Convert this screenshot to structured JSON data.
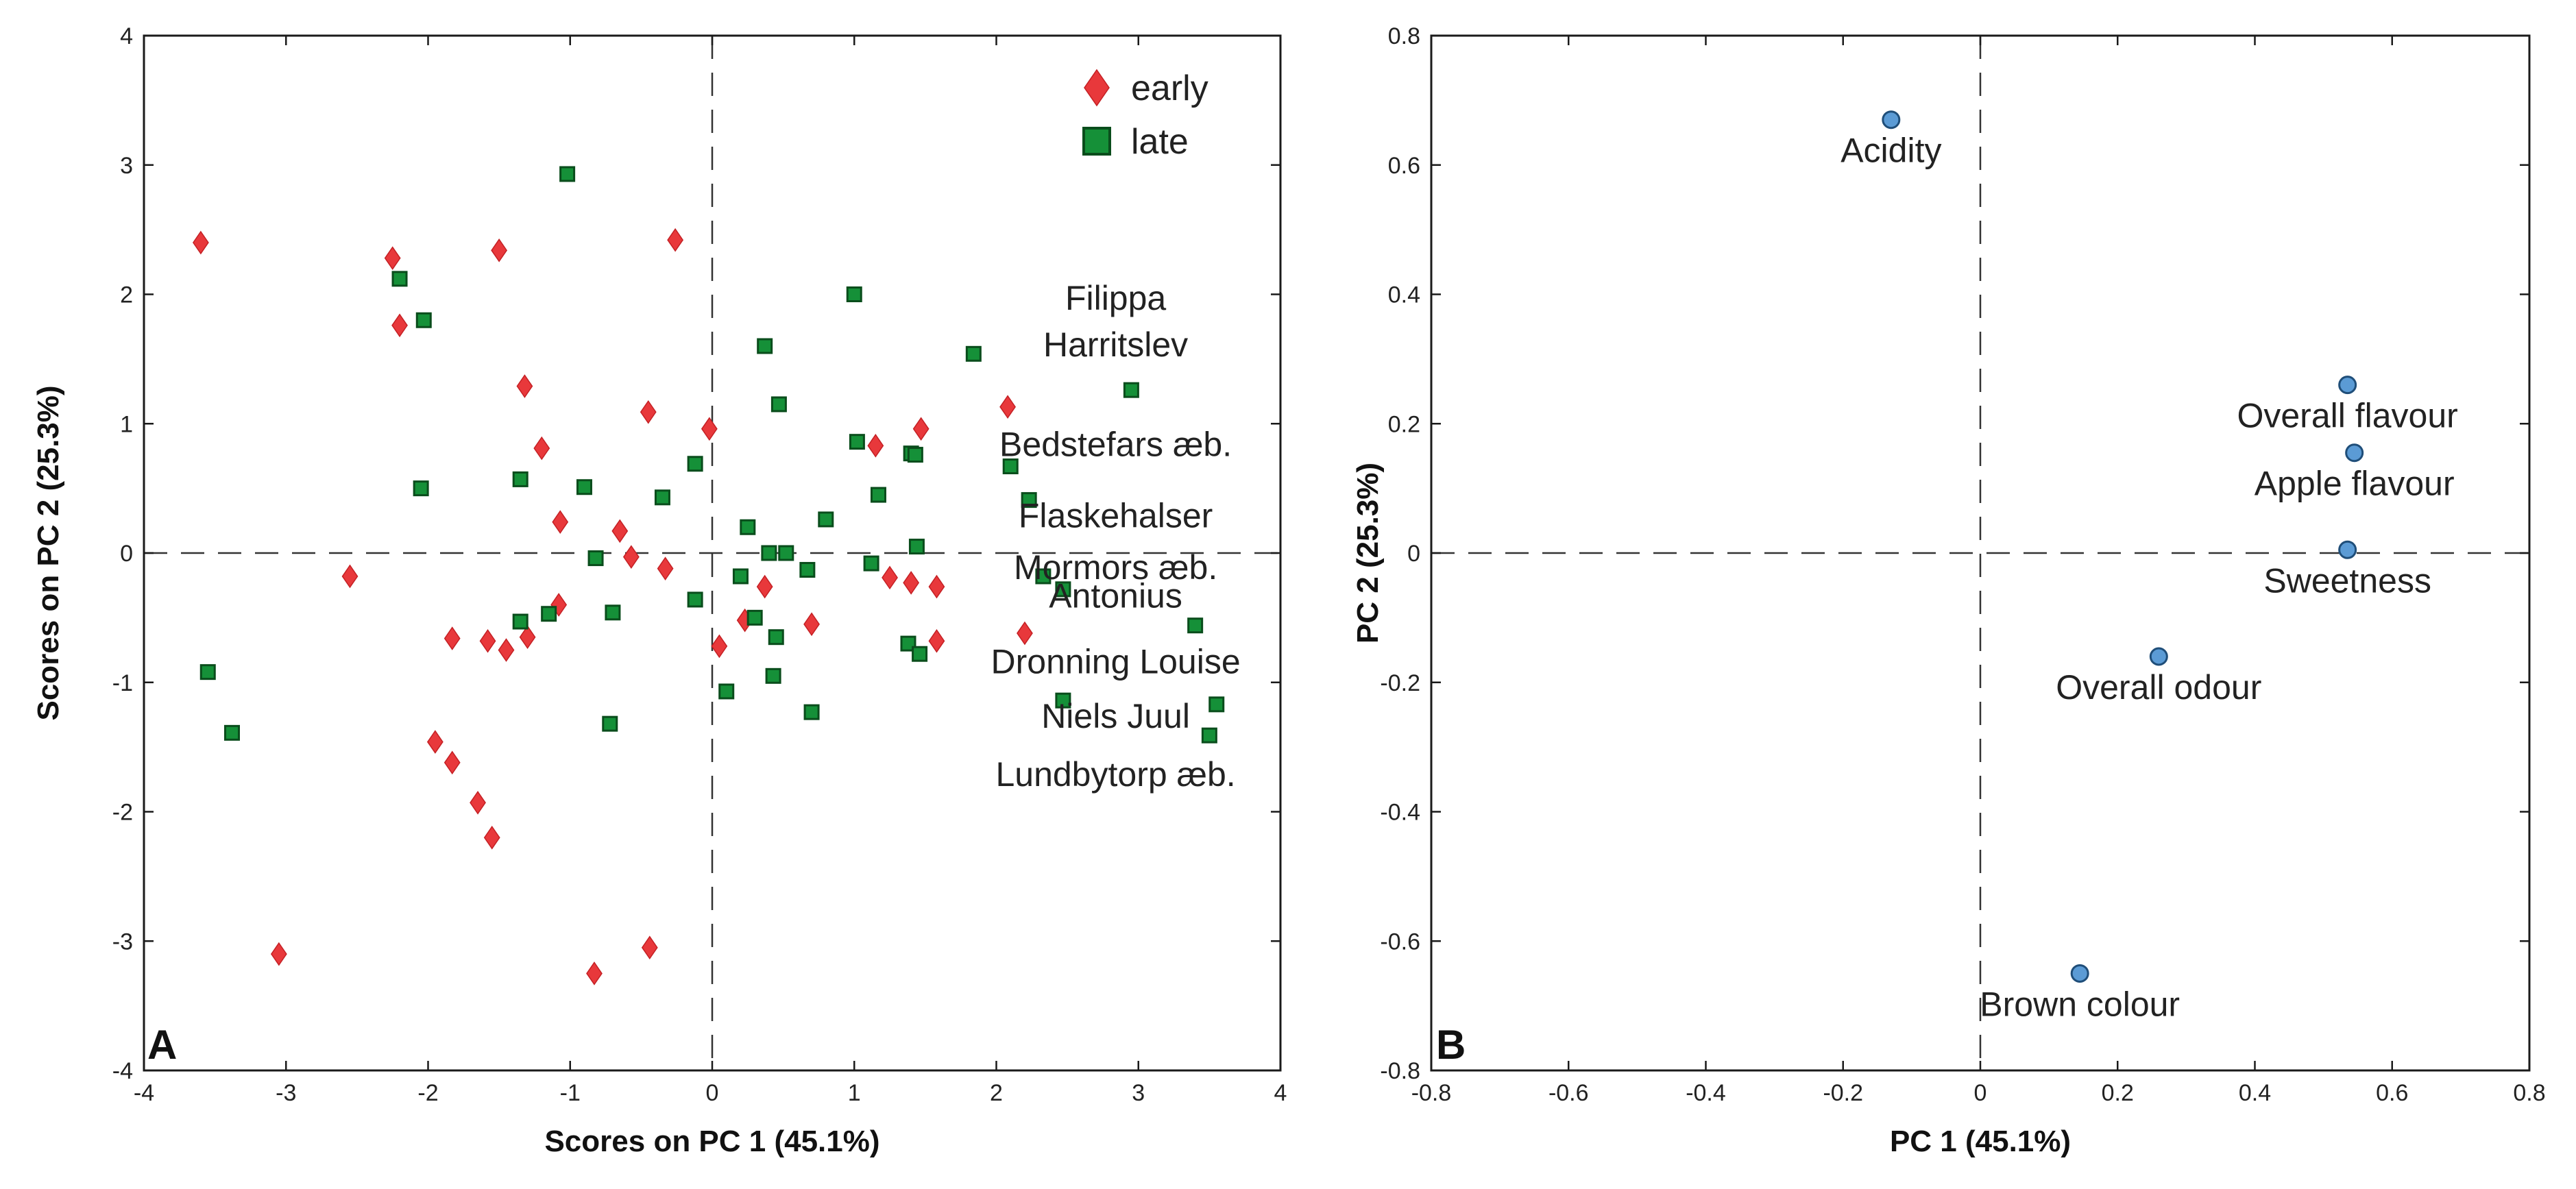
{
  "chart_data": [
    {
      "panel": "A",
      "type": "scatter",
      "xlabel": "Scores on PC 1 (45.1%)",
      "ylabel": "Scores on PC 2 (25.3%)",
      "xlim": [
        -4,
        4
      ],
      "ylim": [
        -4,
        4
      ],
      "xticks": [
        -4,
        -3,
        -2,
        -1,
        0,
        1,
        2,
        3,
        4
      ],
      "yticks": [
        -4,
        -3,
        -2,
        -1,
        0,
        1,
        2,
        3,
        4
      ],
      "reference_lines": "dashed lines at x=0 and y=0",
      "legend": {
        "position": "top-right",
        "entries": [
          "early",
          "late"
        ]
      },
      "series": [
        {
          "name": "early",
          "marker": "diamond",
          "color": "#e8383b",
          "points": [
            [
              -3.6,
              2.4
            ],
            [
              -3.05,
              -3.1
            ],
            [
              -2.55,
              -0.18
            ],
            [
              -2.25,
              2.28
            ],
            [
              -2.2,
              1.76
            ],
            [
              -1.95,
              -1.46
            ],
            [
              -1.83,
              -1.62
            ],
            [
              -1.83,
              -0.66
            ],
            [
              -1.65,
              -1.93
            ],
            [
              -1.58,
              -0.68
            ],
            [
              -1.55,
              -2.2
            ],
            [
              -1.5,
              2.34
            ],
            [
              -1.45,
              -0.75
            ],
            [
              -1.32,
              1.29
            ],
            [
              -1.3,
              -0.65
            ],
            [
              -1.2,
              0.81
            ],
            [
              -1.08,
              -0.4
            ],
            [
              -1.07,
              0.24
            ],
            [
              -0.83,
              -3.25
            ],
            [
              -0.65,
              0.17
            ],
            [
              -0.57,
              -0.03
            ],
            [
              -0.45,
              1.09
            ],
            [
              -0.44,
              -3.05
            ],
            [
              -0.33,
              -0.12
            ],
            [
              -0.26,
              2.42
            ],
            [
              -0.02,
              0.96
            ],
            [
              0.05,
              -0.72
            ],
            [
              0.23,
              -0.52
            ],
            [
              0.37,
              -0.26
            ],
            [
              0.7,
              -0.55
            ],
            [
              1.15,
              0.83
            ],
            [
              1.25,
              -0.19
            ],
            [
              1.4,
              -0.23
            ],
            [
              1.47,
              0.96
            ],
            [
              1.58,
              -0.26
            ],
            [
              1.58,
              -0.68
            ],
            [
              2.08,
              1.13
            ],
            [
              2.2,
              -0.62
            ]
          ]
        },
        {
          "name": "late",
          "marker": "square",
          "color": "#159038",
          "points": [
            [
              -3.55,
              -0.92
            ],
            [
              -3.38,
              -1.39
            ],
            [
              -2.2,
              2.12
            ],
            [
              -2.05,
              0.5
            ],
            [
              -2.03,
              1.8
            ],
            [
              -1.35,
              0.57
            ],
            [
              -1.35,
              -0.53
            ],
            [
              -1.15,
              -0.47
            ],
            [
              -1.02,
              2.93
            ],
            [
              -0.9,
              0.51
            ],
            [
              -0.82,
              -0.04
            ],
            [
              -0.72,
              -1.32
            ],
            [
              -0.7,
              -0.46
            ],
            [
              -0.35,
              0.43
            ],
            [
              -0.12,
              0.69
            ],
            [
              -0.12,
              -0.36
            ],
            [
              0.1,
              -1.07
            ],
            [
              0.2,
              -0.18
            ],
            [
              0.25,
              0.2
            ],
            [
              0.3,
              -0.5
            ],
            [
              0.37,
              1.6
            ],
            [
              0.4,
              0.0
            ],
            [
              0.43,
              -0.95
            ],
            [
              0.45,
              -0.65
            ],
            [
              0.47,
              1.15
            ],
            [
              0.52,
              0.0
            ],
            [
              0.67,
              -0.13
            ],
            [
              0.7,
              -1.23
            ],
            [
              0.8,
              0.26
            ],
            [
              1.0,
              2.0
            ],
            [
              1.02,
              0.86
            ],
            [
              1.12,
              -0.08
            ],
            [
              1.17,
              0.45
            ],
            [
              1.38,
              -0.7
            ],
            [
              1.4,
              0.77
            ],
            [
              1.43,
              0.76
            ],
            [
              1.44,
              0.05
            ],
            [
              1.46,
              -0.78
            ],
            [
              1.84,
              1.54
            ],
            [
              2.1,
              0.67
            ],
            [
              2.23,
              0.41
            ],
            [
              2.33,
              -0.18
            ],
            [
              2.47,
              -1.14
            ],
            [
              2.47,
              -0.28
            ],
            [
              2.95,
              1.26
            ],
            [
              3.4,
              -0.56
            ],
            [
              3.5,
              -1.41
            ],
            [
              3.55,
              -1.17
            ]
          ]
        }
      ],
      "annotations": [
        {
          "text": "Filippa",
          "x": 2.84,
          "y": 1.88
        },
        {
          "text": "Harritslev",
          "x": 2.84,
          "y": 1.52
        },
        {
          "text": "Bedstefars æb.",
          "x": 2.84,
          "y": 0.75
        },
        {
          "text": "Flaskehalser",
          "x": 2.84,
          "y": 0.2
        },
        {
          "text": "Mormors æb.",
          "x": 2.84,
          "y": -0.2
        },
        {
          "text": "Antonius",
          "x": 2.84,
          "y": -0.42
        },
        {
          "text": "Dronning Louise",
          "x": 2.84,
          "y": -0.93
        },
        {
          "text": "Niels Juul",
          "x": 2.84,
          "y": -1.35
        },
        {
          "text": "Lundbytorp æb.",
          "x": 2.84,
          "y": -1.8
        }
      ]
    },
    {
      "panel": "B",
      "type": "scatter",
      "xlabel": "PC 1 (45.1%)",
      "ylabel": "PC 2 (25.3%)",
      "xlim": [
        -0.8,
        0.8
      ],
      "ylim": [
        -0.8,
        0.8
      ],
      "xticks": [
        -0.8,
        -0.6,
        -0.4,
        -0.2,
        0,
        0.2,
        0.4,
        0.6,
        0.8
      ],
      "yticks": [
        -0.8,
        -0.6,
        -0.4,
        -0.2,
        0,
        0.2,
        0.4,
        0.6,
        0.8
      ],
      "reference_lines": "dashed lines at x=0 and y=0",
      "marker_color": "#5b9bd5",
      "points": [
        {
          "label": "Acidity",
          "x": -0.13,
          "y": 0.67
        },
        {
          "label": "Overall flavour",
          "x": 0.535,
          "y": 0.26
        },
        {
          "label": "Apple flavour",
          "x": 0.545,
          "y": 0.155
        },
        {
          "label": "Sweetness",
          "x": 0.535,
          "y": 0.005
        },
        {
          "label": "Overall odour",
          "x": 0.26,
          "y": -0.16
        },
        {
          "label": "Brown colour",
          "x": 0.145,
          "y": -0.65
        }
      ]
    }
  ]
}
